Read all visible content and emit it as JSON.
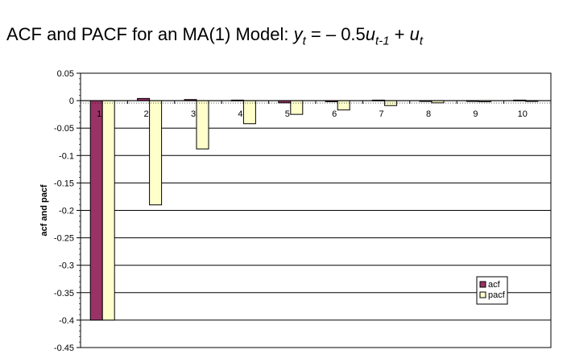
{
  "title": {
    "prefix": "ACF and PACF for an MA(1) Model: ",
    "y": "y",
    "t_sub": "t",
    "mid": " = – 0.5",
    "u": "u",
    "tm1_sub": "t-1",
    "plus": " + ",
    "u2": "u",
    "t2_sub": "t"
  },
  "chart_data": {
    "type": "bar",
    "ylabel": "acf and pacf",
    "ylim": [
      -0.45,
      0.05
    ],
    "yticks": [
      0.05,
      0,
      -0.05,
      -0.1,
      -0.15,
      -0.2,
      -0.25,
      -0.3,
      -0.35,
      -0.4,
      -0.45
    ],
    "ytick_labels": [
      "0.05",
      "0",
      "-0.05",
      "-0.1",
      "-0.15",
      "-0.2",
      "-0.25",
      "-0.3",
      "-0.35",
      "-0.4",
      "-0.45"
    ],
    "categories": [
      "1",
      "2",
      "3",
      "4",
      "5",
      "6",
      "7",
      "8",
      "9",
      "10"
    ],
    "series": [
      {
        "name": "acf",
        "color": "#993366",
        "values": [
          -0.4,
          0.004,
          0.002,
          0.001,
          -0.004,
          -0.002,
          0.001,
          0.0,
          -0.001,
          0.001
        ]
      },
      {
        "name": "pacf",
        "color": "#ffffcc",
        "values": [
          -0.4,
          -0.19,
          -0.088,
          -0.042,
          -0.025,
          -0.017,
          -0.009,
          -0.004,
          -0.002,
          -0.001
        ]
      }
    ],
    "grid": true,
    "legend": "bottom-right"
  }
}
